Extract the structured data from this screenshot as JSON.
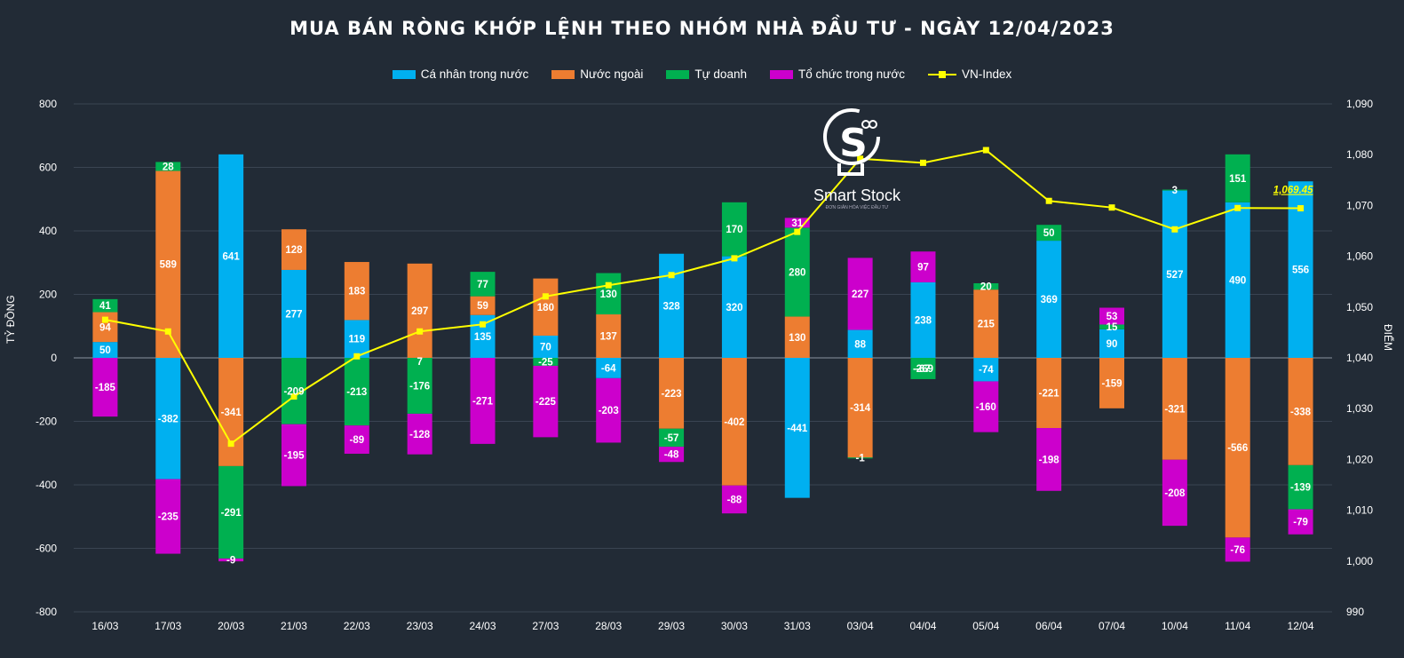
{
  "title": "MUA BÁN RÒNG KHỚP LỆNH THEO NHÓM NHÀ ĐẦU TƯ - NGÀY 12/04/2023",
  "legend": {
    "retail": "Cá nhân trong nước",
    "foreign": "Nước ngoài",
    "proprietary": "Tự doanh",
    "institutional": "Tổ chức trong nước",
    "vnindex": "VN-Index"
  },
  "colors": {
    "retail": "#00b0f0",
    "foreign": "#ed7d31",
    "proprietary": "#00b050",
    "institutional": "#cc00cc",
    "vnindex": "#ffff00"
  },
  "logo": {
    "name": "Smart Stock",
    "tagline": "ĐƠN GIẢN HÓA VIỆC ĐẦU TƯ"
  },
  "chart_data": {
    "type": "bar",
    "stacked": true,
    "title": "MUA BÁN RÒNG KHỚP LỆNH THEO NHÓM NHÀ ĐẦU TƯ - NGÀY 12/04/2023",
    "ylabel": "TỶ ĐỒNG",
    "y2label": "ĐIỂM",
    "ylim": [
      -800,
      800
    ],
    "y2lim": [
      990,
      1090
    ],
    "yticks": [
      800,
      600,
      400,
      200,
      0,
      -200,
      -400,
      -600,
      -800
    ],
    "y2ticks": [
      "1,090",
      "1,080",
      "1,070",
      "1,060",
      "1,050",
      "1,040",
      "1,030",
      "1,020",
      "1,010",
      "1,000",
      "990"
    ],
    "legend_position": "top",
    "grid": true,
    "categories": [
      "16/03",
      "17/03",
      "20/03",
      "21/03",
      "22/03",
      "23/03",
      "24/03",
      "27/03",
      "28/03",
      "29/03",
      "30/03",
      "31/03",
      "03/04",
      "04/04",
      "05/04",
      "06/04",
      "07/04",
      "10/04",
      "11/04",
      "12/04"
    ],
    "series": [
      {
        "name": "Cá nhân trong nước",
        "key": "retail",
        "values": [
          50,
          -382,
          641,
          277,
          119,
          null,
          135,
          70,
          -64,
          328,
          320,
          -441,
          88,
          238,
          -74,
          369,
          90,
          527,
          490,
          556
        ]
      },
      {
        "name": "Nước ngoài",
        "key": "foreign",
        "values": [
          94,
          589,
          -341,
          128,
          183,
          297,
          59,
          180,
          137,
          -223,
          -402,
          130,
          -314,
          null,
          215,
          -221,
          -159,
          -321,
          -566,
          -338
        ]
      },
      {
        "name": "Tự doanh",
        "key": "proprietary",
        "values": [
          41,
          28,
          -291,
          -209,
          -213,
          -176,
          77,
          -25,
          130,
          -57,
          170,
          280,
          -1,
          -67,
          20,
          50,
          15,
          3,
          151,
          -139
        ]
      },
      {
        "name": "Tổ chức trong nước",
        "key": "institutional",
        "values": [
          -185,
          -235,
          -9,
          -195,
          -89,
          -128,
          -271,
          -225,
          -203,
          -48,
          -88,
          31,
          227,
          97,
          -160,
          -198,
          53,
          -208,
          -76,
          -79
        ]
      },
      {
        "name": "VN-Index",
        "key": "vnindex",
        "axis": "right",
        "type": "line",
        "values": [
          1047.5,
          1045.2,
          1023.1,
          1032.4,
          1040.3,
          1045.2,
          1046.6,
          1052.1,
          1054.3,
          1056.3,
          1059.6,
          1064.8,
          1079.2,
          1078.4,
          1080.9,
          1070.9,
          1069.6,
          1065.3,
          1069.5,
          1069.45
        ]
      }
    ],
    "extra_labels": [
      {
        "category": "23/03",
        "text": "7"
      },
      {
        "category": "04/04",
        "text": "-269"
      }
    ],
    "annotations": [
      {
        "category": "12/04",
        "text": "1,069.45"
      }
    ]
  }
}
